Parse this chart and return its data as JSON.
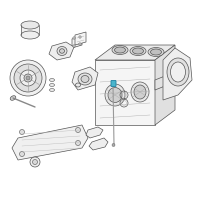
{
  "bg_color": "#ffffff",
  "part_fill": "#f0f0f0",
  "part_edge": "#555555",
  "part_fill2": "#e8e8e8",
  "highlight_color": "#4ab5cc",
  "fig_size": [
    2.0,
    2.0
  ],
  "dpi": 100,
  "lw": 0.5
}
